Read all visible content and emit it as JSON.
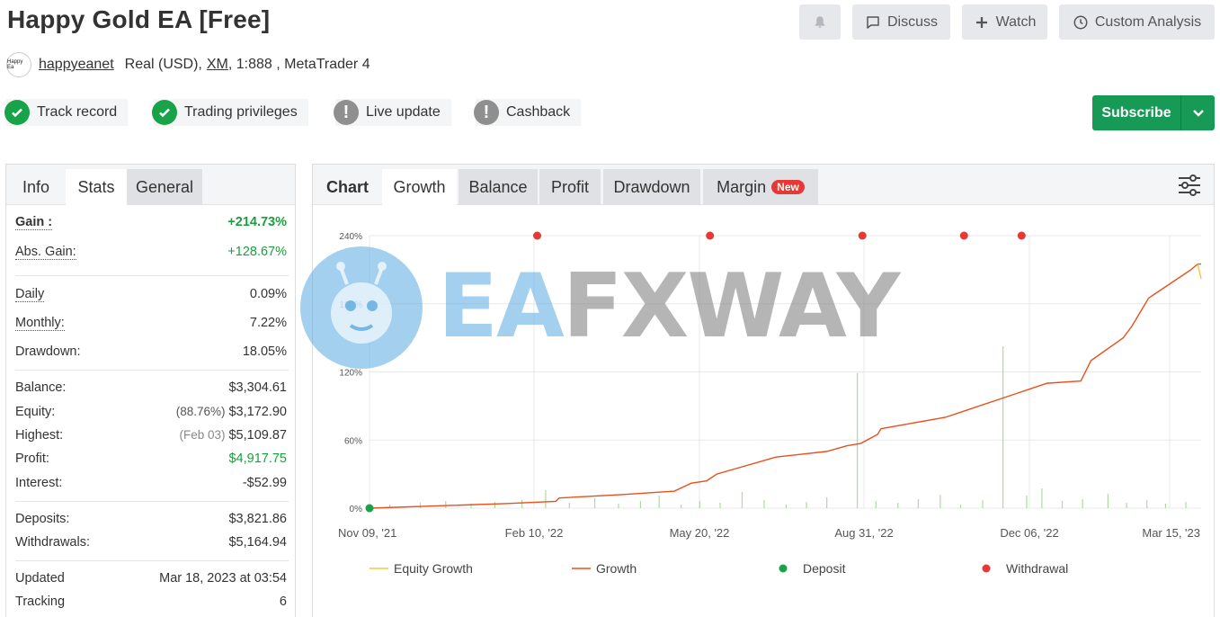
{
  "header": {
    "title": "Happy Gold EA [Free]",
    "buttons": {
      "discuss": "Discuss",
      "watch": "Watch",
      "custom_analysis": "Custom Analysis"
    }
  },
  "account": {
    "avatar_text": "Happy Ea",
    "username": "happyeanet",
    "type": "Real (USD),",
    "broker": "XM",
    "leverage_platform": ", 1:888 , MetaTrader 4"
  },
  "badges": {
    "track_record": "Track record",
    "trading_privileges": "Trading privileges",
    "live_update": "Live update",
    "cashback": "Cashback"
  },
  "subscribe": {
    "label": "Subscribe"
  },
  "left_tabs": {
    "info": "Info",
    "stats": "Stats",
    "general": "General"
  },
  "stats": {
    "gain": {
      "label": "Gain :",
      "value": "+214.73%"
    },
    "abs_gain": {
      "label": "Abs. Gain:",
      "value": "+128.67%"
    },
    "daily": {
      "label": "Daily",
      "value": "0.09%"
    },
    "monthly": {
      "label": "Monthly:",
      "value": "7.22%"
    },
    "drawdown": {
      "label": "Drawdown:",
      "value": "18.05%"
    },
    "balance": {
      "label": "Balance:",
      "value": "$3,304.61"
    },
    "equity": {
      "label": "Equity:",
      "note": "(88.76%)",
      "value": "$3,172.90"
    },
    "highest": {
      "label": "Highest:",
      "note": "(Feb 03)",
      "value": "$5,109.87"
    },
    "profit": {
      "label": "Profit:",
      "value": "$4,917.75"
    },
    "interest": {
      "label": "Interest:",
      "value": "-$52.99"
    },
    "deposits": {
      "label": "Deposits:",
      "value": "$3,821.86"
    },
    "withdrawals": {
      "label": "Withdrawals:",
      "value": "$5,164.94"
    },
    "updated": {
      "label": "Updated",
      "value": "Mar 18, 2023 at 03:54"
    },
    "tracking": {
      "label": "Tracking",
      "value": "6"
    }
  },
  "chart_tabs": {
    "chart": "Chart",
    "growth": "Growth",
    "balance": "Balance",
    "profit": "Profit",
    "drawdown": "Drawdown",
    "margin": "Margin",
    "new_badge": "New"
  },
  "watermark": {
    "ea": "EA",
    "fxway": "FXWAY"
  },
  "colors": {
    "growth": "#e8501c",
    "equity": "#f5c542",
    "deposit": "#18a348",
    "withdrawal": "#e53935",
    "bars": "#a9dca0",
    "accent_green": "#179a55"
  },
  "chart_data": {
    "type": "line",
    "x_ticks": [
      "Nov 09, '21",
      "Feb 10, '22",
      "May 20, '22",
      "Aug 31, '22",
      "Dec 06, '22",
      "Mar 15, '23"
    ],
    "y_ticks": [
      "0%",
      "60%",
      "120%",
      "180%",
      "240%"
    ],
    "ylim": [
      0,
      240
    ],
    "x_range_days": [
      0,
      491
    ],
    "grid": true,
    "legend_position": "bottom",
    "series": [
      {
        "name": "Growth",
        "x": [
          0,
          40,
          80,
          110,
          112,
          150,
          180,
          190,
          199,
          205,
          240,
          270,
          282,
          290,
          300,
          302,
          340,
          350,
          380,
          390,
          400,
          420,
          426,
          445,
          450,
          460,
          465,
          475,
          485,
          489,
          491
        ],
        "y": [
          0,
          2,
          4,
          6,
          9,
          12,
          15,
          22,
          24,
          30,
          45,
          50,
          55,
          57,
          65,
          70,
          80,
          85,
          100,
          105,
          110,
          112,
          130,
          150,
          160,
          185,
          190,
          200,
          210,
          215,
          215
        ]
      },
      {
        "name": "Equity Growth",
        "x": [
          489,
          491
        ],
        "y": [
          215,
          202
        ]
      },
      {
        "name": "Deposit",
        "x": [
          0
        ],
        "y": [
          0
        ]
      },
      {
        "name": "Withdrawal",
        "x": [
          99,
          201,
          291,
          351,
          385
        ],
        "y": [
          240,
          240,
          240,
          240,
          240
        ]
      }
    ]
  }
}
